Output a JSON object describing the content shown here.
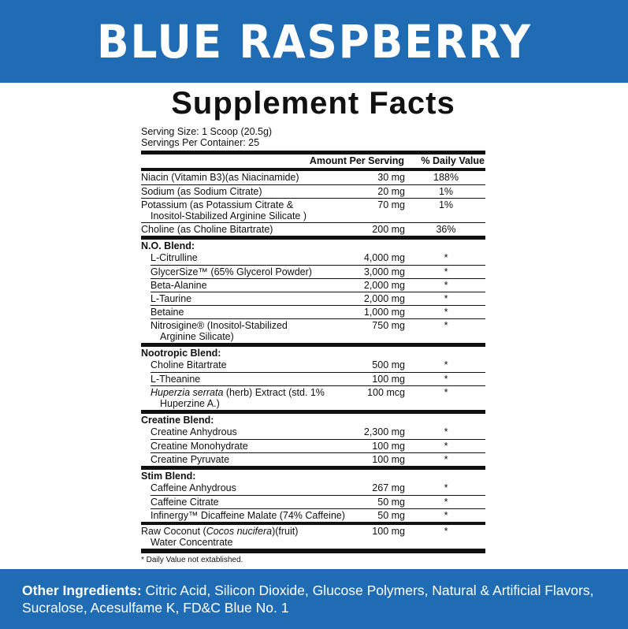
{
  "banner": {
    "title": "BLUE RASPBERRY",
    "color": "#1f6cb4"
  },
  "facts": {
    "title": "Supplement Facts",
    "serving_size": "Serving Size: 1 Scoop (20.5g)",
    "servings_per_container": "Servings Per Container: 25",
    "col_amount": "Amount Per Serving",
    "col_dv": "% Daily Value",
    "sections": [
      {
        "blend": "",
        "rows": [
          {
            "name": "Niacin (Vitamin B3)(as Niacinamide)",
            "amount": "30 mg",
            "dv": "188%"
          },
          {
            "name": "Sodium (as Sodium Citrate)",
            "amount": "20 mg",
            "dv": "1%"
          },
          {
            "name": "Potassium (as Potassium Citrate &",
            "name2": "Inositol-Stabilized Arginine Silicate )",
            "amount": "70 mg",
            "dv": "1%"
          },
          {
            "name": "Choline (as Choline Bitartrate)",
            "amount": "200 mg",
            "dv": "36%"
          }
        ]
      },
      {
        "blend": "N.O. Blend:",
        "rows": [
          {
            "name": "L-Citrulline",
            "amount": "4,000 mg",
            "dv": "*"
          },
          {
            "name": "GlycerSize™ (65% Glycerol Powder)",
            "amount": "3,000 mg",
            "dv": "*"
          },
          {
            "name": "Beta-Alanine",
            "amount": "2,000 mg",
            "dv": "*"
          },
          {
            "name": "L-Taurine",
            "amount": "2,000 mg",
            "dv": "*"
          },
          {
            "name": "Betaine",
            "amount": "1,000 mg",
            "dv": "*"
          },
          {
            "name": "Nitrosigine® (Inositol-Stabilized",
            "name2": "Arginine Silicate)",
            "amount": "750 mg",
            "dv": "*"
          }
        ]
      },
      {
        "blend": "Nootropic Blend:",
        "rows": [
          {
            "name": "Choline Bitartrate",
            "amount": "500 mg",
            "dv": "*"
          },
          {
            "name": "L-Theanine",
            "amount": "100 mg",
            "dv": "*"
          },
          {
            "italic": "Huperzia serrata",
            "name": " (herb) Extract (std. 1%",
            "name2": "Huperzine A.)",
            "amount": "100 mcg",
            "dv": "*"
          }
        ]
      },
      {
        "blend": "Creatine Blend:",
        "rows": [
          {
            "name": "Creatine Anhydrous",
            "amount": "2,300 mg",
            "dv": "*"
          },
          {
            "name": "Creatine Monohydrate",
            "amount": "100 mg",
            "dv": "*"
          },
          {
            "name": "Creatine Pyruvate",
            "amount": "100 mg",
            "dv": "*"
          }
        ]
      },
      {
        "blend": "Stim Blend:",
        "rows": [
          {
            "name": "Caffeine Anhydrous",
            "amount": "267 mg",
            "dv": "*"
          },
          {
            "name": "Caffeine Citrate",
            "amount": "50 mg",
            "dv": "*"
          },
          {
            "name": "Infinergy™ Dicaffeine Malate (74% Caffeine)",
            "amount": "50 mg",
            "dv": "*"
          }
        ],
        "tail": {
          "name": "Raw Coconut (",
          "italic": "Cocos nucifera",
          "post": ")(fruit)",
          "name2": "Water Concentrate",
          "amount": "100 mg",
          "dv": "*"
        }
      }
    ],
    "footnote": "* Daily Value not extablished."
  },
  "other": {
    "label": "Other Ingredients:",
    "text": " Citric Acid, Silicon Dioxide, Glucose Polymers, Natural & Artificial Flavors, Sucralose, Acesulfame K, FD&C Blue No. 1"
  }
}
